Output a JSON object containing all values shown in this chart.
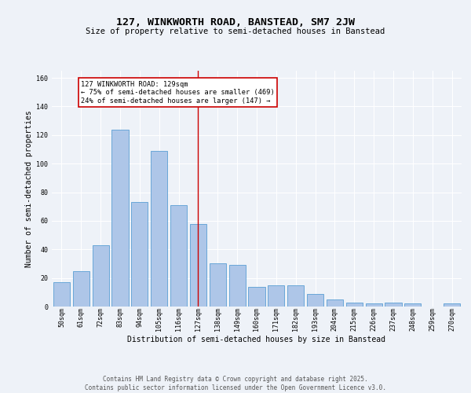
{
  "title": "127, WINKWORTH ROAD, BANSTEAD, SM7 2JW",
  "subtitle": "Size of property relative to semi-detached houses in Banstead",
  "xlabel": "Distribution of semi-detached houses by size in Banstead",
  "ylabel": "Number of semi-detached properties",
  "categories": [
    "50sqm",
    "61sqm",
    "72sqm",
    "83sqm",
    "94sqm",
    "105sqm",
    "116sqm",
    "127sqm",
    "138sqm",
    "149sqm",
    "160sqm",
    "171sqm",
    "182sqm",
    "193sqm",
    "204sqm",
    "215sqm",
    "226sqm",
    "237sqm",
    "248sqm",
    "259sqm",
    "270sqm"
  ],
  "values": [
    17,
    25,
    43,
    124,
    73,
    109,
    71,
    58,
    30,
    29,
    14,
    15,
    15,
    9,
    5,
    3,
    2,
    3,
    2,
    0,
    2
  ],
  "bar_color": "#aec6e8",
  "bar_edge_color": "#5a9fd4",
  "highlight_index": 7,
  "annotation_text": "127 WINKWORTH ROAD: 129sqm\n← 75% of semi-detached houses are smaller (469)\n24% of semi-detached houses are larger (147) →",
  "annotation_box_color": "#ffffff",
  "annotation_box_edge_color": "#cc0000",
  "ylim": [
    0,
    165
  ],
  "background_color": "#eef2f8",
  "grid_color": "#ffffff",
  "footer_text": "Contains HM Land Registry data © Crown copyright and database right 2025.\nContains public sector information licensed under the Open Government Licence v3.0.",
  "title_fontsize": 9.5,
  "subtitle_fontsize": 7.5,
  "xlabel_fontsize": 7,
  "ylabel_fontsize": 7,
  "tick_fontsize": 6,
  "annotation_fontsize": 6.2,
  "footer_fontsize": 5.5
}
